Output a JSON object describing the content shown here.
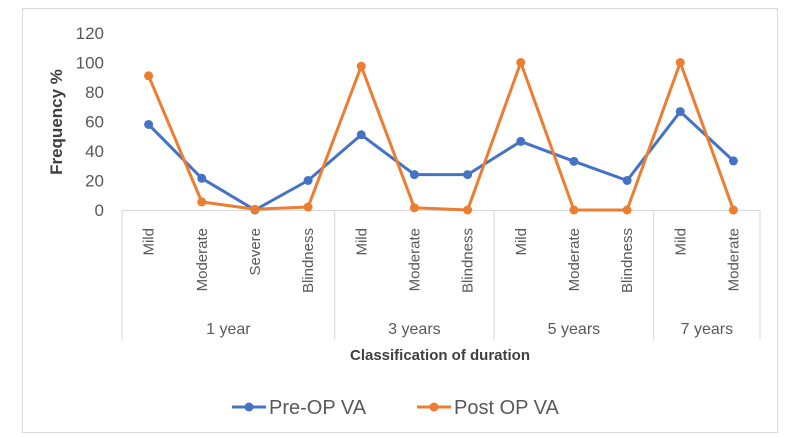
{
  "chart_data": {
    "type": "line",
    "title": "",
    "xlabel": "Classification of duration",
    "ylabel": "Frequency %",
    "ylim": [
      0,
      120
    ],
    "yticks": [
      0,
      20,
      40,
      60,
      80,
      100,
      120
    ],
    "grid": false,
    "legend_placement": "bottom",
    "groups": [
      {
        "label": "1 year",
        "categories": [
          "Mild",
          "Moderate",
          "Severe",
          "Blindness"
        ]
      },
      {
        "label": "3 years",
        "categories": [
          "Mild",
          "Moderate",
          "Blindness"
        ]
      },
      {
        "label": "5 years",
        "categories": [
          "Mild",
          "Moderate",
          "Blindness"
        ]
      },
      {
        "label": "7 years",
        "categories": [
          "Mild",
          "Moderate"
        ]
      }
    ],
    "series": [
      {
        "name": "Pre-OP VA",
        "color": "#4472C4",
        "values": [
          58,
          21.5,
          0,
          20,
          51,
          24,
          24,
          46.5,
          33,
          20,
          66.7,
          33.3
        ]
      },
      {
        "name": "Post OP VA",
        "color": "#ED7D31",
        "values": [
          91,
          5.5,
          0.5,
          2,
          97.5,
          1.5,
          0,
          100,
          0,
          0,
          100,
          0
        ]
      }
    ]
  }
}
